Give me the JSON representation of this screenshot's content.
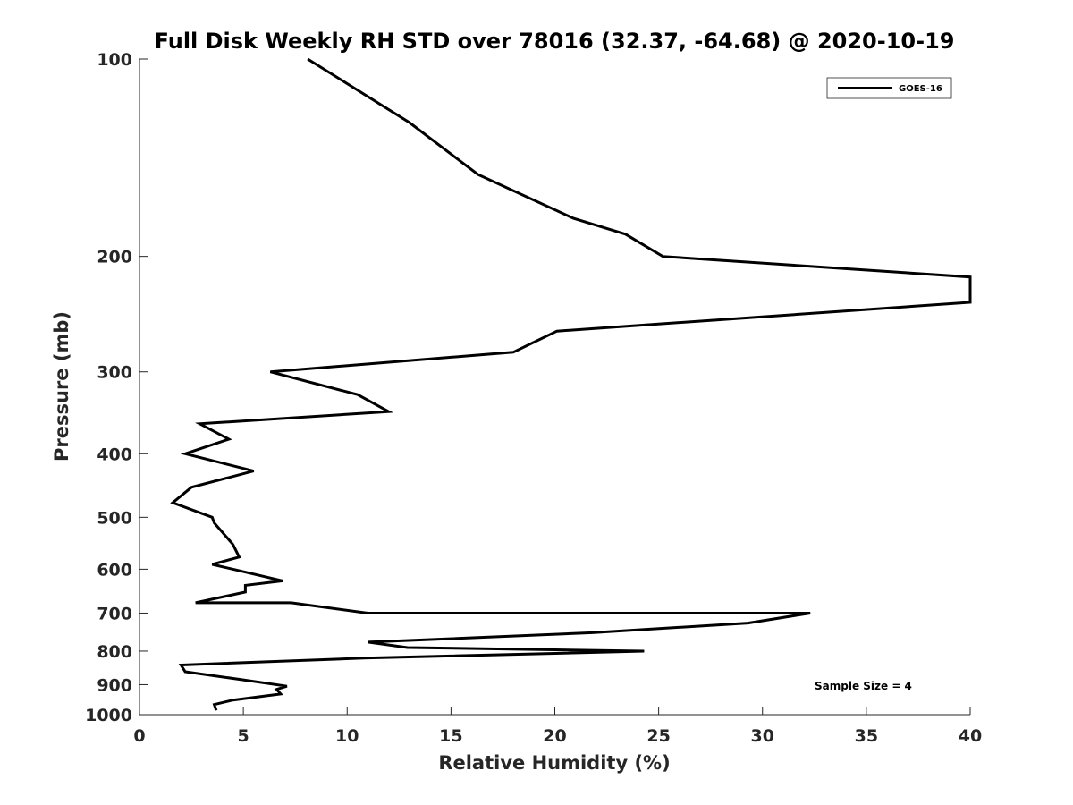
{
  "chart_data": {
    "type": "line",
    "title": "Full Disk Weekly RH STD over 78016 (32.37, -64.68) @ 2020-10-19",
    "xlabel": "Relative Humidity (%)",
    "ylabel": "Pressure (mb)",
    "xlim": [
      0,
      40
    ],
    "ylim": [
      100,
      1000
    ],
    "y_scale": "log",
    "y_reversed": true,
    "grid": false,
    "x_ticks": [
      "0",
      "5",
      "10",
      "15",
      "20",
      "25",
      "30",
      "35",
      "40"
    ],
    "y_ticks": [
      "100",
      "200",
      "300",
      "400",
      "500",
      "600",
      "700",
      "800",
      "900",
      "1000"
    ],
    "legend": {
      "position": "top-right",
      "entries": [
        "GOES-16"
      ]
    },
    "annotation": "Sample Size = 4",
    "series": [
      {
        "name": "GOES-16",
        "color": "#000000",
        "x": [
          8.1,
          13,
          16.3,
          20.9,
          23.4,
          25.2,
          40,
          40,
          20.1,
          18,
          6.3,
          10.5,
          12,
          2.9,
          4.3,
          2.2,
          5.5,
          2.5,
          1.6,
          3.5,
          3.6,
          4.5,
          4.8,
          3.5,
          6.9,
          5.1,
          5.1,
          2.7,
          7.3,
          11,
          32.3,
          29.3,
          21.8,
          11,
          12.9,
          24.3,
          10.8,
          2,
          2.2,
          5,
          7.1,
          6.6,
          6.8,
          4.5,
          3.6,
          3.7
        ],
        "y": [
          100,
          125,
          150,
          175,
          185,
          200,
          215,
          235,
          260,
          280,
          300,
          325,
          345,
          360,
          380,
          400,
          425,
          450,
          475,
          500,
          510,
          550,
          575,
          590,
          625,
          635,
          650,
          675,
          675,
          700,
          700,
          725,
          750,
          775,
          790,
          800,
          820,
          840,
          860,
          885,
          905,
          915,
          930,
          950,
          965,
          985
        ]
      }
    ]
  }
}
